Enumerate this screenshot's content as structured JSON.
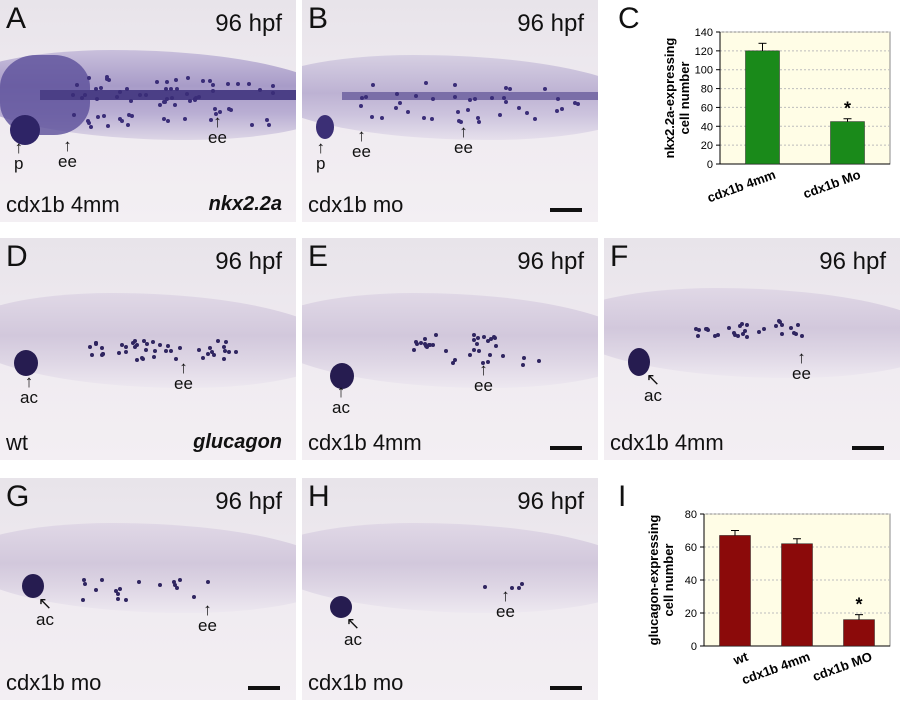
{
  "panels": [
    {
      "letter": "A",
      "time": "96 hpf",
      "label": "cdx1b 4mm",
      "gene": "nkx2.2a",
      "marks": [
        "p",
        "ee",
        "ee"
      ]
    },
    {
      "letter": "B",
      "time": "96 hpf",
      "label": "cdx1b mo",
      "gene": "",
      "marks": [
        "p",
        "ee",
        "ee"
      ]
    },
    {
      "letter": "D",
      "time": "96 hpf",
      "label": "wt",
      "gene": "glucagon",
      "marks": [
        "ac",
        "ee"
      ]
    },
    {
      "letter": "E",
      "time": "96 hpf",
      "label": "cdx1b 4mm",
      "gene": "",
      "marks": [
        "ac",
        "ee"
      ]
    },
    {
      "letter": "F",
      "time": "96 hpf",
      "label": "cdx1b 4mm",
      "gene": "",
      "marks": [
        "ac",
        "ee"
      ]
    },
    {
      "letter": "G",
      "time": "96 hpf",
      "label": "cdx1b mo",
      "gene": "",
      "marks": [
        "ac",
        "ee"
      ]
    },
    {
      "letter": "H",
      "time": "96 hpf",
      "label": "cdx1b mo",
      "gene": "",
      "marks": [
        "ac",
        "ee"
      ]
    }
  ],
  "chart_data": [
    {
      "panel_letter": "C",
      "type": "bar",
      "ylabel": "nkx2.2a-expressing cell number",
      "categories": [
        "cdx1b 4mm",
        "cdx1b Mo"
      ],
      "values": [
        120,
        45
      ],
      "errors": [
        8,
        3
      ],
      "ylim": [
        0,
        140
      ],
      "yticks": [
        0,
        20,
        40,
        60,
        80,
        100,
        120,
        140
      ],
      "significance": [
        "",
        "*"
      ],
      "bar_color": "#1a8a1a",
      "background": "#fffde6",
      "grid": true
    },
    {
      "panel_letter": "I",
      "type": "bar",
      "ylabel": "glucagon-expressing cell number",
      "categories": [
        "wt",
        "cdx1b 4mm",
        "cdx1b MO"
      ],
      "values": [
        67,
        62,
        16
      ],
      "errors": [
        3,
        3,
        3
      ],
      "ylim": [
        0,
        80
      ],
      "yticks": [
        0,
        20,
        40,
        60,
        80
      ],
      "significance": [
        "",
        "",
        "*"
      ],
      "bar_color": "#8b0a0a",
      "background": "#fffde6",
      "grid": true
    }
  ]
}
